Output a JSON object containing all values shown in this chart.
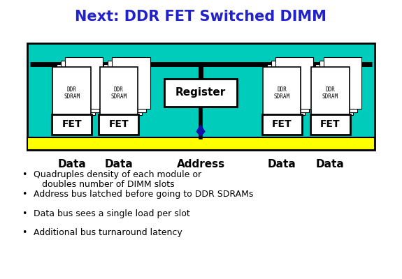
{
  "title": "Next: DDR FET Switched DIMM",
  "title_color": "#2222CC",
  "title_fontsize": 15,
  "bg_color": "#FFFFFF",
  "teal_bg": "#00CCBB",
  "yellow_bar_color": "#FFFF00",
  "black_color": "#000000",
  "white_color": "#FFFFFF",
  "bullet_points_line1": [
    "Quadruples density of each module or",
    "Address bus latched before going to DDR SDRAMs",
    "Data bus sees a single load per slot",
    "Additional bus turnaround latency"
  ],
  "bullet_points_line2": [
    "doubles number of DIMM slots",
    "",
    "",
    ""
  ],
  "labels_bottom": [
    "Data",
    "Data",
    "Address",
    "Data",
    "Data"
  ],
  "sdram_label": "DDR\nSDRAM"
}
